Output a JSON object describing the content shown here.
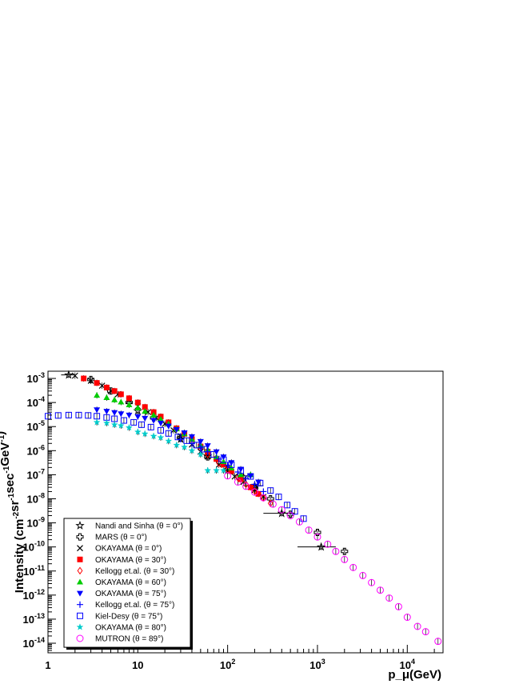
{
  "chart_data": {
    "type": "scatter",
    "title": "",
    "xlabel": "p_μ(GeV)",
    "ylabel": "Intensity (cm^-2sr^-1sec^-1GeV^-1)",
    "xscale": "log",
    "yscale": "log",
    "xlim": [
      1,
      25000
    ],
    "ylim": [
      4e-15,
      0.002
    ],
    "x_ticks": [
      {
        "value": 1,
        "label": "1"
      },
      {
        "value": 10,
        "label": "10"
      },
      {
        "value": 100,
        "label": "10",
        "exp": "2"
      },
      {
        "value": 1000,
        "label": "10",
        "exp": "3"
      },
      {
        "value": 10000,
        "label": "10",
        "exp": "4"
      }
    ],
    "y_ticks": [
      {
        "value": 0.001,
        "label": "10",
        "exp": "-3"
      },
      {
        "value": 0.0001,
        "label": "10",
        "exp": "-4"
      },
      {
        "value": 1e-05,
        "label": "10",
        "exp": "-5"
      },
      {
        "value": 1e-06,
        "label": "10",
        "exp": "-6"
      },
      {
        "value": 1e-07,
        "label": "10",
        "exp": "-7"
      },
      {
        "value": 1e-08,
        "label": "10",
        "exp": "-8"
      },
      {
        "value": 1e-09,
        "label": "10",
        "exp": "-9"
      },
      {
        "value": 1e-10,
        "label": "10",
        "exp": "-10"
      },
      {
        "value": 1e-11,
        "label": "10",
        "exp": "-11"
      },
      {
        "value": 1e-12,
        "label": "10",
        "exp": "-12"
      },
      {
        "value": 1e-13,
        "label": "10",
        "exp": "-13"
      },
      {
        "value": 1e-14,
        "label": "10",
        "exp": "-14"
      }
    ],
    "grid": false,
    "legend_position": "bottom-left",
    "series": [
      {
        "name": "Nandi and Sinha (θ = 0°)",
        "marker": "star",
        "color": "#000000",
        "x": [
          1.7,
          10,
          30,
          60,
          100,
          150,
          200,
          400,
          1100
        ],
        "y": [
          0.0014,
          4.5e-05,
          3e-06,
          6e-07,
          2e-07,
          8e-08,
          3.5e-08,
          2.5e-09,
          1e-10
        ],
        "xerr": [
          0.3,
          0,
          0,
          0,
          0,
          0,
          50,
          150,
          500
        ]
      },
      {
        "name": "MARS (θ = 0°)",
        "marker": "cross-open",
        "color": "#000000",
        "x": [
          3,
          5,
          8,
          15,
          30,
          60,
          100,
          200,
          300,
          500,
          1000,
          2000
        ],
        "y": [
          0.0009,
          0.0003,
          0.0001,
          2.3e-05,
          3.5e-06,
          5.5e-07,
          1.6e-07,
          2.8e-08,
          1e-08,
          2.3e-09,
          4e-10,
          6.5e-11
        ]
      },
      {
        "name": "OKAYAMA (θ = 0°)",
        "marker": "x",
        "color": "#000000",
        "x": [
          2,
          3,
          4,
          5,
          6,
          8,
          10,
          13,
          16,
          20,
          25,
          30,
          40,
          50,
          60,
          80,
          100,
          120,
          150,
          200,
          250
        ],
        "y": [
          0.0013,
          0.0008,
          0.0005,
          0.0003,
          0.00022,
          0.00012,
          7e-05,
          4e-05,
          2.3e-05,
          1.3e-05,
          7e-06,
          4e-06,
          1.8e-06,
          9e-07,
          6e-07,
          2.6e-07,
          1.4e-07,
          8.5e-08,
          5e-08,
          2.3e-08,
          1.2e-08
        ]
      },
      {
        "name": "OKAYAMA (θ = 30°)",
        "marker": "square",
        "color": "#ff0000",
        "x": [
          2.5,
          3.5,
          4.5,
          5.5,
          6.5,
          8,
          10,
          12,
          15,
          18,
          22,
          27,
          33,
          40,
          50,
          60,
          75,
          90,
          110,
          140,
          180,
          220
        ],
        "y": [
          0.001,
          0.00065,
          0.00042,
          0.0003,
          0.00022,
          0.00015,
          0.0001,
          6.5e-05,
          4e-05,
          2.6e-05,
          1.5e-05,
          8.5e-06,
          5e-06,
          3e-06,
          1.5e-06,
          9e-07,
          4.5e-07,
          2.6e-07,
          1.4e-07,
          6.5e-08,
          3e-08,
          1.6e-08
        ]
      },
      {
        "name": "Kellogg et.al. (θ = 30°)",
        "marker": "diamond-open",
        "color": "#ff0000",
        "x": [
          60,
          80,
          100,
          130,
          160,
          200,
          250,
          300
        ],
        "y": [
          7e-07,
          3e-07,
          1.6e-07,
          7.5e-08,
          4e-08,
          2.1e-08,
          1.1e-08,
          6.5e-09
        ]
      },
      {
        "name": "OKAYAMA (θ = 60°)",
        "marker": "triangle",
        "color": "#00cc00",
        "x": [
          3.5,
          4.5,
          5.5,
          6.5,
          8,
          10,
          12,
          15,
          18,
          22,
          27,
          33,
          40,
          50,
          60,
          75,
          90,
          110,
          140,
          180
        ],
        "y": [
          0.0002,
          0.00016,
          0.00013,
          0.000105,
          8e-05,
          6e-05,
          4.3e-05,
          3e-05,
          2e-05,
          1.3e-05,
          8e-06,
          5e-06,
          3e-06,
          1.7e-06,
          1.1e-06,
          5.5e-07,
          3.5e-07,
          1.9e-07,
          1e-07,
          1e-07
        ]
      },
      {
        "name": "OKAYAMA (θ = 75°)",
        "marker": "triangle-down",
        "color": "#0000ff",
        "x": [
          3.5,
          4.5,
          5.5,
          6.5,
          8,
          10,
          12,
          15,
          18,
          22,
          27,
          33,
          40,
          50,
          60,
          75,
          90,
          110,
          140,
          180,
          220
        ],
        "y": [
          5e-05,
          4.3e-05,
          3.8e-05,
          3.4e-05,
          3e-05,
          2.6e-05,
          2.2e-05,
          1.8e-05,
          1.4e-05,
          1.05e-05,
          7.5e-06,
          5.5e-06,
          3.8e-06,
          2.4e-06,
          1.6e-06,
          9e-07,
          5.5e-07,
          3.2e-07,
          1.7e-07,
          9e-08,
          5e-08
        ]
      },
      {
        "name": "Kellogg et.al. (θ = 75°)",
        "marker": "plus",
        "color": "#0000ff",
        "x": [
          30,
          40,
          50,
          60,
          80,
          100,
          130,
          160,
          200,
          250
        ],
        "y": [
          3e-06,
          2e-06,
          1.3e-06,
          9e-07,
          4.5e-07,
          2.5e-07,
          1.3e-07,
          7e-08,
          4e-08,
          2e-08
        ]
      },
      {
        "name": "Kiel-Desy (θ = 75°)",
        "marker": "square-open",
        "color": "#0000ff",
        "x": [
          1,
          1.3,
          1.7,
          2.2,
          2.8,
          3.5,
          4.5,
          5.5,
          7,
          9,
          11,
          14,
          18,
          22,
          28,
          35,
          45,
          55,
          70,
          90,
          110,
          140,
          180,
          230,
          300,
          370,
          460,
          560,
          700
        ],
        "y": [
          2.7e-05,
          2.9e-05,
          3e-05,
          3e-05,
          2.9e-05,
          2.7e-05,
          2.4e-05,
          2.1e-05,
          1.8e-05,
          1.5e-05,
          1.2e-05,
          9.5e-06,
          7e-06,
          5.2e-06,
          3.7e-06,
          2.6e-06,
          1.7e-06,
          1.15e-06,
          7e-07,
          4.2e-07,
          2.6e-07,
          1.5e-07,
          8.5e-08,
          4.5e-08,
          2.2e-08,
          1.2e-08,
          5.5e-09,
          3e-09,
          1.5e-09
        ]
      },
      {
        "name": "OKAYAMA (θ = 80°)",
        "marker": "star-filled",
        "color": "#00cccc",
        "x": [
          3.5,
          4.5,
          5.5,
          6.5,
          8,
          10,
          12,
          15,
          18,
          22,
          27,
          33,
          40,
          50,
          60,
          75,
          90
        ],
        "y": [
          1.5e-05,
          1.4e-05,
          1.2e-05,
          1.1e-05,
          9e-06,
          6e-06,
          5e-06,
          4e-06,
          3.5e-06,
          2.5e-06,
          1.7e-06,
          1.4e-06,
          1e-06,
          7e-07,
          1.5e-07,
          1.5e-07,
          1.5e-07
        ]
      },
      {
        "name": "MUTRON (θ = 89°)",
        "marker": "circle-open",
        "color": "#ff00ff",
        "x": [
          100,
          130,
          160,
          200,
          250,
          320,
          400,
          500,
          630,
          800,
          1000,
          1300,
          1600,
          2000,
          2500,
          3200,
          4000,
          5000,
          6300,
          8000,
          10000,
          13000,
          16000,
          22000
        ],
        "y": [
          9e-08,
          5e-08,
          3.3e-08,
          1.9e-08,
          1.1e-08,
          6e-09,
          3.5e-09,
          2e-09,
          1.1e-09,
          5e-10,
          2.6e-10,
          1.3e-10,
          6.5e-11,
          3e-11,
          1.4e-11,
          6.5e-12,
          3.3e-12,
          1.6e-12,
          7.5e-13,
          3.3e-13,
          1.2e-13,
          5e-14,
          3e-14,
          1.2e-14
        ]
      }
    ]
  }
}
